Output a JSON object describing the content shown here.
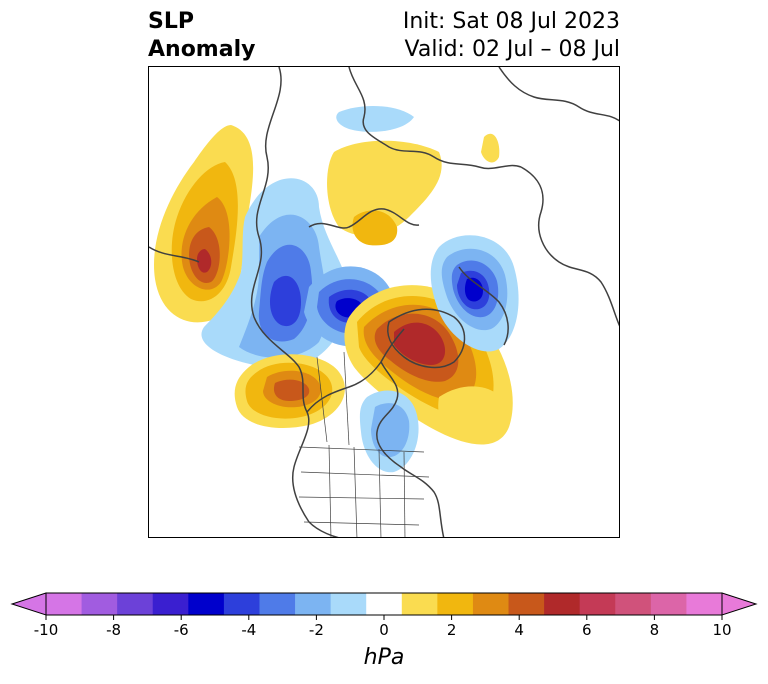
{
  "title": {
    "left_line1": "SLP",
    "left_line2": "Anomaly",
    "right_line1": "Init: Sat 08 Jul 2023",
    "right_line2": "Valid: 02 Jul – 08 Jul"
  },
  "colorbar": {
    "units": "hPa",
    "ticks": [
      "-10",
      "-8",
      "-6",
      "-4",
      "-2",
      "0",
      "2",
      "4",
      "6",
      "8",
      "10"
    ],
    "levels": [
      -10,
      -9,
      -8,
      -7,
      -6,
      -5,
      -4,
      -3,
      -2,
      -1,
      1,
      2,
      3,
      4,
      5,
      6,
      7,
      8,
      9,
      10
    ],
    "colors": [
      "#d575e6",
      "#a15ce0",
      "#6c41d8",
      "#3a1fd0",
      "#0000cc",
      "#2d3fdb",
      "#4f7be8",
      "#7cb4f2",
      "#a9dafa",
      "#ffffff",
      "#fadc50",
      "#f1b70f",
      "#df8a13",
      "#c8581b",
      "#b0292a",
      "#c43a56",
      "#d0527b",
      "#dc65a8",
      "#e87ad9"
    ],
    "extend_low_color": "#d575e6",
    "extend_high_color": "#e87ad9"
  },
  "map": {
    "projection": "north-polar-stereographic",
    "colors": {
      "coast": "#404040",
      "yellow": "#fadc50",
      "light_blue": "#a9dafa"
    }
  }
}
